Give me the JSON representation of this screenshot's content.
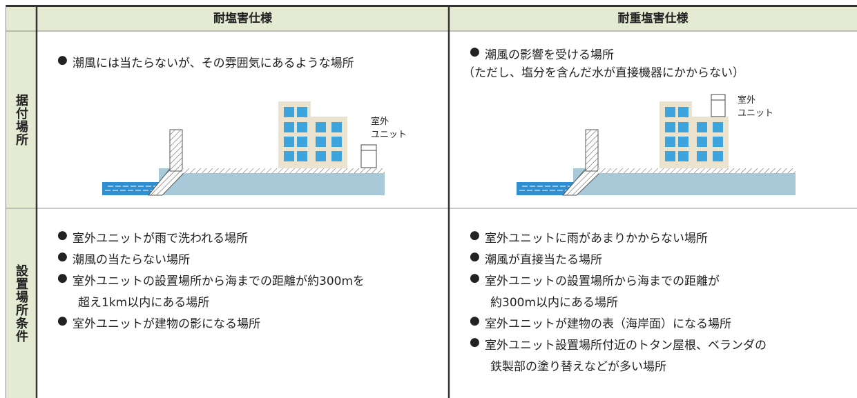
{
  "header": {
    "columns": [
      "耐塩害仕様",
      "耐重塩害仕様"
    ]
  },
  "rows": [
    {
      "label": "据付場所",
      "cells": [
        {
          "items": [
            [
              "潮風には当たらないが、その雰囲気にあるような場所"
            ]
          ],
          "unit_label": [
            "室外",
            "ユニット"
          ]
        },
        {
          "items": [
            [
              "潮風の影響を受ける場所"
            ]
          ],
          "note": "（ただし、塩分を含んだ水が直接機器にかからない）",
          "unit_label": [
            "室外",
            "ユニット"
          ]
        }
      ]
    },
    {
      "label": "設置場所条件",
      "cells": [
        {
          "items": [
            [
              "室外ユニットが雨で洗われる場所"
            ],
            [
              "潮風の当たらない場所"
            ],
            [
              "室外ユニットの設置場所から海までの距離が約300mを",
              "超え1km以内にある場所"
            ],
            [
              "室外ユニットが建物の影になる場所"
            ]
          ]
        },
        {
          "items": [
            [
              "室外ユニットに雨があまりかからない場所"
            ],
            [
              "潮風が直接当たる場所"
            ],
            [
              "室外ユニットの設置場所から海までの距離が",
              "約300m以内にある場所"
            ],
            [
              "室外ユニットが建物の表（海岸面）になる場所"
            ],
            [
              "室外ユニット設置場所付近のトタン屋根、ベランダの",
              "鉄製部の塗り替えなどが多い場所"
            ]
          ]
        }
      ]
    }
  ]
}
